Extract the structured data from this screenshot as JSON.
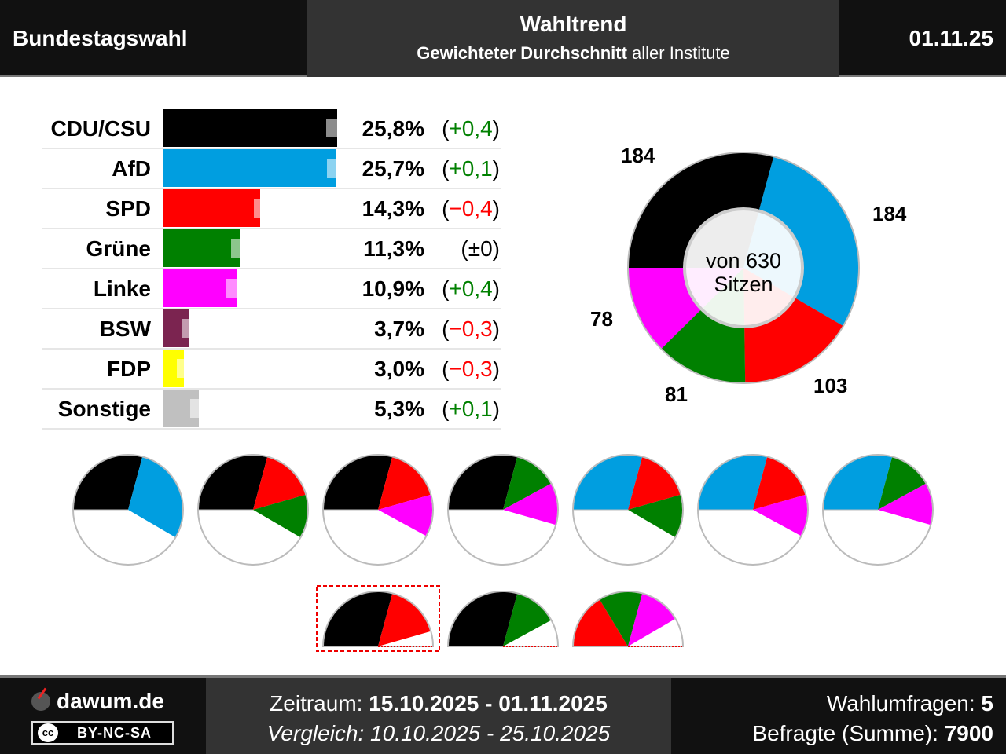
{
  "header": {
    "left": "Bundestagswahl",
    "title": "Wahltrend",
    "subtitle_bold": "Gewichteter Durchschnitt",
    "subtitle_rest": " aller Institute",
    "date": "01.11.25"
  },
  "chart_data": {
    "type": "bar",
    "title": "Wahltrend",
    "parties": [
      {
        "name": "CDU/CSU",
        "value": 25.8,
        "prev": 25.4,
        "change": "(+0,4)",
        "pct": "25,8%",
        "color": "#000000",
        "dir": "pos"
      },
      {
        "name": "AfD",
        "value": 25.7,
        "prev": 25.6,
        "change": "(+0,1)",
        "pct": "25,7%",
        "color": "#009ee0",
        "dir": "pos"
      },
      {
        "name": "SPD",
        "value": 14.3,
        "prev": 14.7,
        "change": "(−0,4)",
        "pct": "14,3%",
        "color": "#ff0000",
        "dir": "neg"
      },
      {
        "name": "Grüne",
        "value": 11.3,
        "prev": 11.3,
        "change": "(±0)",
        "pct": "11,3%",
        "color": "#008000",
        "dir": "zero"
      },
      {
        "name": "Linke",
        "value": 10.9,
        "prev": 10.5,
        "change": "(+0,4)",
        "pct": "10,9%",
        "color": "#ff00ff",
        "dir": "pos"
      },
      {
        "name": "BSW",
        "value": 3.7,
        "prev": 4.0,
        "change": "(−0,3)",
        "pct": "3,7%",
        "color": "#7b2450",
        "dir": "neg"
      },
      {
        "name": "FDP",
        "value": 3.0,
        "prev": 3.3,
        "change": "(−0,3)",
        "pct": "3,0%",
        "color": "#ffff00",
        "dir": "neg"
      },
      {
        "name": "Sonstige",
        "value": 5.3,
        "prev": 5.2,
        "change": "(+0,1)",
        "pct": "5,3%",
        "color": "#c0c0c0",
        "dir": "pos"
      }
    ],
    "seats": {
      "total_label": "von 630",
      "total_label2": "Sitzen",
      "total": 630,
      "items": [
        {
          "party": "CDU/CSU",
          "seats": 184,
          "label": "184",
          "color": "#000000"
        },
        {
          "party": "AfD",
          "seats": 184,
          "label": "184",
          "color": "#009ee0"
        },
        {
          "party": "SPD",
          "seats": 103,
          "label": "103",
          "color": "#ff0000"
        },
        {
          "party": "Grüne",
          "seats": 81,
          "label": "81",
          "color": "#008000"
        },
        {
          "party": "Linke",
          "seats": 78,
          "label": "78",
          "color": "#ff00ff"
        }
      ]
    },
    "coalitions": [
      [
        "CDU/CSU",
        "AfD"
      ],
      [
        "CDU/CSU",
        "SPD",
        "Grüne"
      ],
      [
        "CDU/CSU",
        "SPD",
        "Linke"
      ],
      [
        "CDU/CSU",
        "Grüne",
        "Linke"
      ],
      [
        "AfD",
        "SPD",
        "Grüne"
      ],
      [
        "AfD",
        "SPD",
        "Linke"
      ],
      [
        "AfD",
        "Grüne",
        "Linke"
      ]
    ],
    "minority_coalitions": [
      [
        "CDU/CSU",
        "SPD"
      ],
      [
        "CDU/CSU",
        "Grüne"
      ],
      [
        "SPD",
        "Grüne",
        "Linke"
      ]
    ]
  },
  "footer": {
    "site": "dawum.de",
    "license": "BY-NC-SA",
    "cc": "cc",
    "period_label": "Zeitraum: ",
    "period": "15.10.2025 - 01.11.2025",
    "compare": "Vergleich: 10.10.2025 - 25.10.2025",
    "polls_label": "Wahlumfragen: ",
    "polls": "5",
    "resp_label": "Befragte (Summe): ",
    "resp": "7900"
  }
}
